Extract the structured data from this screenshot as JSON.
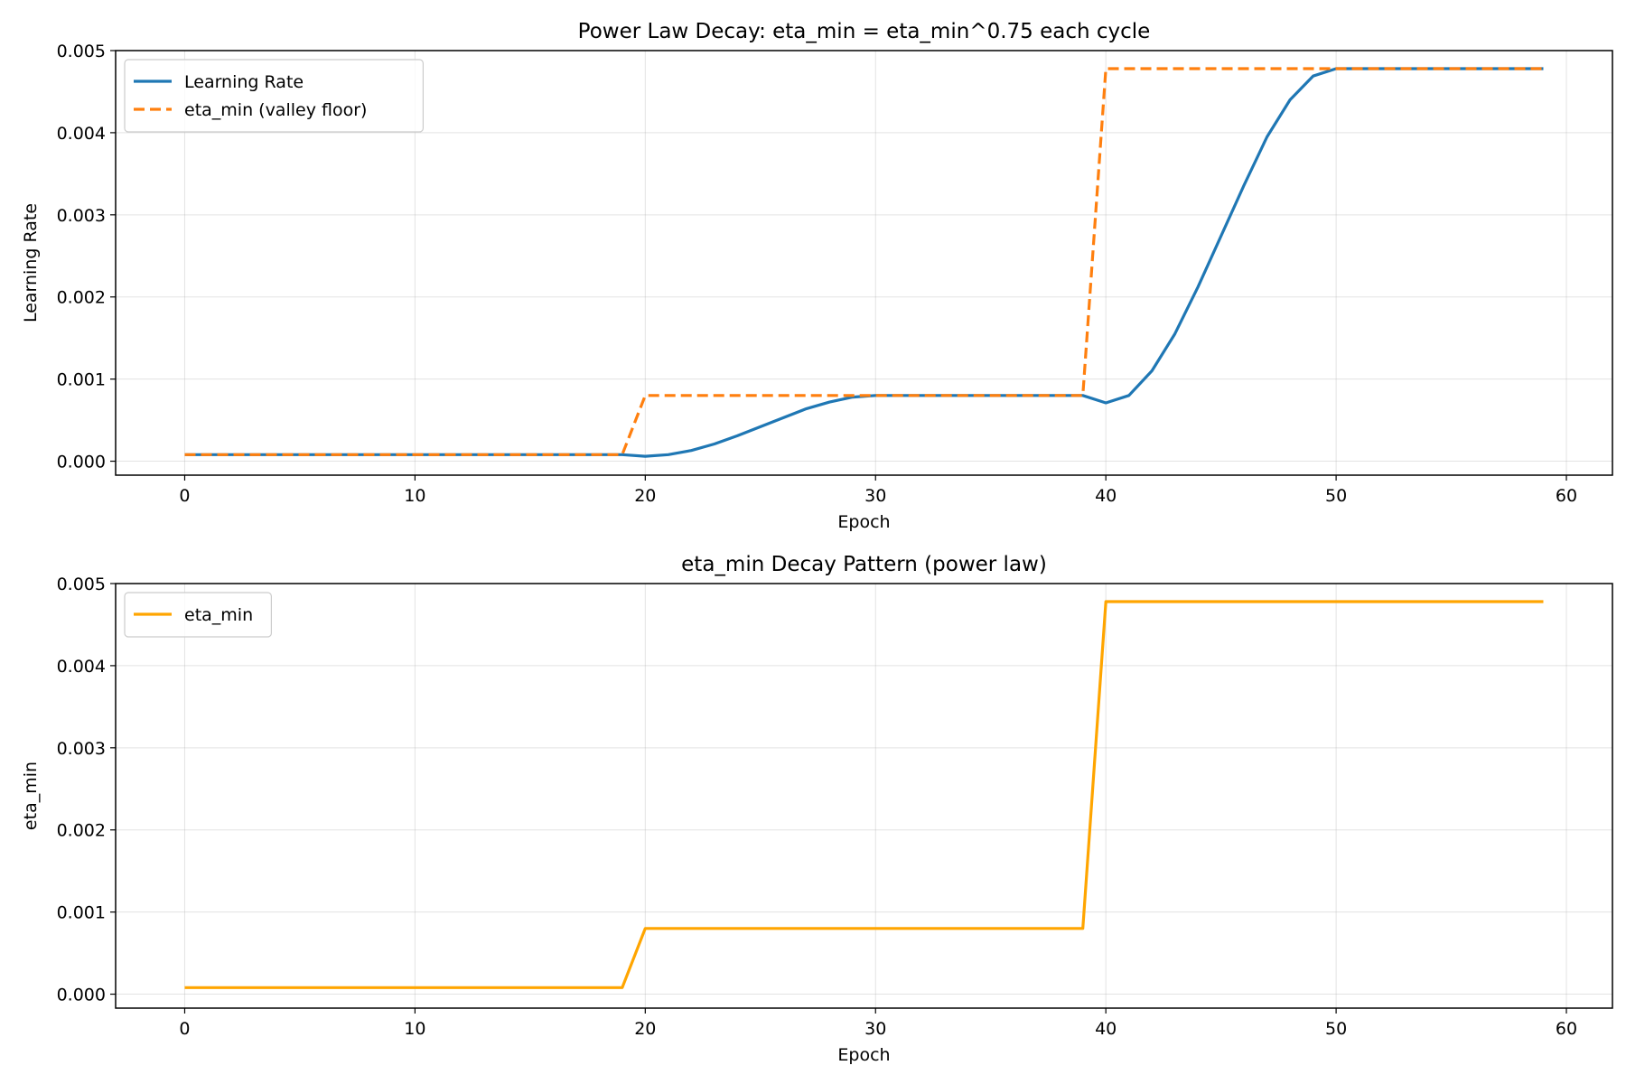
{
  "chart_data": [
    {
      "type": "line",
      "title": "Power Law Decay: eta_min = eta_min^0.75 each cycle",
      "xlabel": "Epoch",
      "ylabel": "Learning Rate",
      "xlim": [
        -3,
        62
      ],
      "ylim": [
        -0.00017,
        0.005
      ],
      "xticks": [
        0,
        10,
        20,
        30,
        40,
        50,
        60
      ],
      "xtick_labels": [
        "0",
        "10",
        "20",
        "30",
        "40",
        "50",
        "60"
      ],
      "yticks": [
        0,
        0.001,
        0.002,
        0.003,
        0.004,
        0.005
      ],
      "ytick_labels": [
        "0.000",
        "0.001",
        "0.002",
        "0.003",
        "0.004",
        "0.005"
      ],
      "grid": true,
      "legend_position": "upper-left",
      "x": [
        0,
        1,
        2,
        3,
        4,
        5,
        6,
        7,
        8,
        9,
        10,
        11,
        12,
        13,
        14,
        15,
        16,
        17,
        18,
        19,
        20,
        21,
        22,
        23,
        24,
        25,
        26,
        27,
        28,
        29,
        30,
        31,
        32,
        33,
        34,
        35,
        36,
        37,
        38,
        39,
        40,
        41,
        42,
        43,
        44,
        45,
        46,
        47,
        48,
        49,
        50,
        51,
        52,
        53,
        54,
        55,
        56,
        57,
        58,
        59
      ],
      "series": [
        {
          "name": "Learning Rate",
          "color": "#1f77b4",
          "dash": "solid",
          "values": [
            8e-05,
            8e-05,
            8e-05,
            8e-05,
            8e-05,
            8e-05,
            8e-05,
            8e-05,
            8e-05,
            8e-05,
            8e-05,
            8e-05,
            8e-05,
            8e-05,
            8e-05,
            8e-05,
            8e-05,
            8e-05,
            8e-05,
            8e-05,
            6e-05,
            8e-05,
            0.00013,
            0.00021,
            0.00031,
            0.00042,
            0.00053,
            0.00064,
            0.00072,
            0.00078,
            0.0008,
            0.0008,
            0.0008,
            0.0008,
            0.0008,
            0.0008,
            0.0008,
            0.0008,
            0.0008,
            0.0008,
            0.00071,
            0.0008,
            0.0011,
            0.00155,
            0.00212,
            0.00274,
            0.00336,
            0.00395,
            0.0044,
            0.00469,
            0.00478,
            0.00478,
            0.00478,
            0.00478,
            0.00478,
            0.00478,
            0.00478,
            0.00478,
            0.00478,
            0.00478
          ]
        },
        {
          "name": "eta_min (valley floor)",
          "color": "#ff7f0e",
          "dash": "dashed",
          "values": [
            8e-05,
            8e-05,
            8e-05,
            8e-05,
            8e-05,
            8e-05,
            8e-05,
            8e-05,
            8e-05,
            8e-05,
            8e-05,
            8e-05,
            8e-05,
            8e-05,
            8e-05,
            8e-05,
            8e-05,
            8e-05,
            8e-05,
            8e-05,
            0.0008,
            0.0008,
            0.0008,
            0.0008,
            0.0008,
            0.0008,
            0.0008,
            0.0008,
            0.0008,
            0.0008,
            0.0008,
            0.0008,
            0.0008,
            0.0008,
            0.0008,
            0.0008,
            0.0008,
            0.0008,
            0.0008,
            0.0008,
            0.00478,
            0.00478,
            0.00478,
            0.00478,
            0.00478,
            0.00478,
            0.00478,
            0.00478,
            0.00478,
            0.00478,
            0.00478,
            0.00478,
            0.00478,
            0.00478,
            0.00478,
            0.00478,
            0.00478,
            0.00478,
            0.00478,
            0.00478
          ]
        }
      ]
    },
    {
      "type": "line",
      "title": "eta_min Decay Pattern (power law)",
      "xlabel": "Epoch",
      "ylabel": "eta_min",
      "xlim": [
        -3,
        62
      ],
      "ylim": [
        -0.00017,
        0.005
      ],
      "xticks": [
        0,
        10,
        20,
        30,
        40,
        50,
        60
      ],
      "xtick_labels": [
        "0",
        "10",
        "20",
        "30",
        "40",
        "50",
        "60"
      ],
      "yticks": [
        0,
        0.001,
        0.002,
        0.003,
        0.004,
        0.005
      ],
      "ytick_labels": [
        "0.000",
        "0.001",
        "0.002",
        "0.003",
        "0.004",
        "0.005"
      ],
      "grid": true,
      "legend_position": "upper-left",
      "x": [
        0,
        1,
        2,
        3,
        4,
        5,
        6,
        7,
        8,
        9,
        10,
        11,
        12,
        13,
        14,
        15,
        16,
        17,
        18,
        19,
        20,
        21,
        22,
        23,
        24,
        25,
        26,
        27,
        28,
        29,
        30,
        31,
        32,
        33,
        34,
        35,
        36,
        37,
        38,
        39,
        40,
        41,
        42,
        43,
        44,
        45,
        46,
        47,
        48,
        49,
        50,
        51,
        52,
        53,
        54,
        55,
        56,
        57,
        58,
        59
      ],
      "series": [
        {
          "name": "eta_min",
          "color": "#ffa500",
          "dash": "solid",
          "values": [
            8e-05,
            8e-05,
            8e-05,
            8e-05,
            8e-05,
            8e-05,
            8e-05,
            8e-05,
            8e-05,
            8e-05,
            8e-05,
            8e-05,
            8e-05,
            8e-05,
            8e-05,
            8e-05,
            8e-05,
            8e-05,
            8e-05,
            8e-05,
            0.0008,
            0.0008,
            0.0008,
            0.0008,
            0.0008,
            0.0008,
            0.0008,
            0.0008,
            0.0008,
            0.0008,
            0.0008,
            0.0008,
            0.0008,
            0.0008,
            0.0008,
            0.0008,
            0.0008,
            0.0008,
            0.0008,
            0.0008,
            0.00478,
            0.00478,
            0.00478,
            0.00478,
            0.00478,
            0.00478,
            0.00478,
            0.00478,
            0.00478,
            0.00478,
            0.00478,
            0.00478,
            0.00478,
            0.00478,
            0.00478,
            0.00478,
            0.00478,
            0.00478,
            0.00478,
            0.00478
          ]
        }
      ]
    }
  ]
}
